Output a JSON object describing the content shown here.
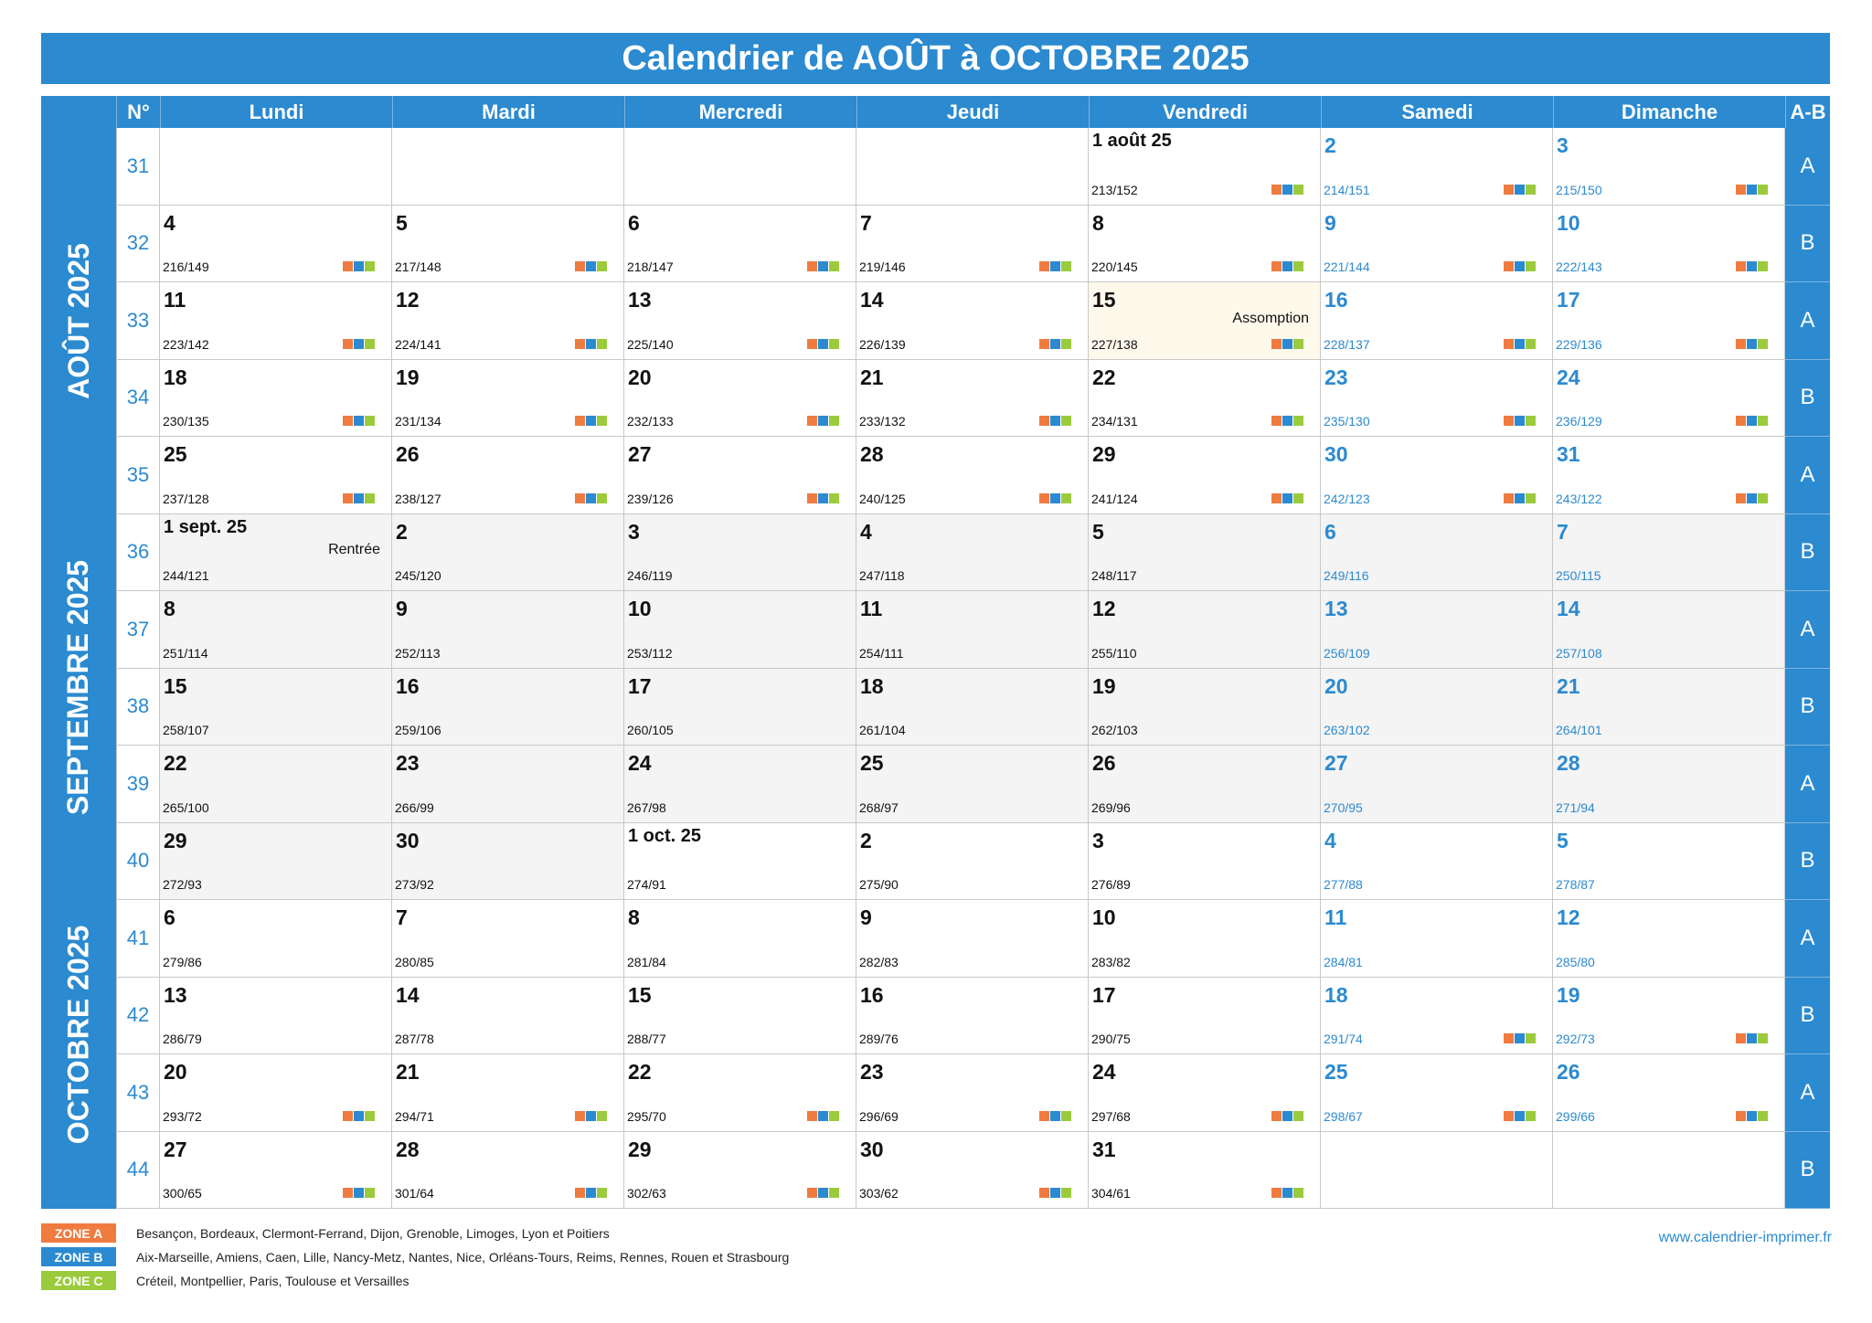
{
  "title": "Calendrier de AOÛT à OCTOBRE 2025",
  "headers": {
    "week": "N°",
    "days": [
      "Lundi",
      "Mardi",
      "Mercredi",
      "Jeudi",
      "Vendredi",
      "Samedi",
      "Dimanche"
    ],
    "ab": "A-B"
  },
  "months": [
    "AOÛT 2025",
    "SEPTEMBRE 2025",
    "OCTOBRE 2025"
  ],
  "weeks": [
    {
      "num": "31",
      "ab": "A",
      "days": [
        null,
        null,
        null,
        null,
        {
          "d": "1 août 25",
          "doy": "213/152",
          "z": 1,
          "m": 0
        },
        {
          "d": "2",
          "doy": "214/151",
          "z": 1,
          "m": 0
        },
        {
          "d": "3",
          "doy": "215/150",
          "z": 1,
          "m": 0
        }
      ]
    },
    {
      "num": "32",
      "ab": "B",
      "days": [
        {
          "d": "4",
          "doy": "216/149",
          "z": 1,
          "m": 0
        },
        {
          "d": "5",
          "doy": "217/148",
          "z": 1,
          "m": 0
        },
        {
          "d": "6",
          "doy": "218/147",
          "z": 1,
          "m": 0
        },
        {
          "d": "7",
          "doy": "219/146",
          "z": 1,
          "m": 0
        },
        {
          "d": "8",
          "doy": "220/145",
          "z": 1,
          "m": 0
        },
        {
          "d": "9",
          "doy": "221/144",
          "z": 1,
          "m": 0
        },
        {
          "d": "10",
          "doy": "222/143",
          "z": 1,
          "m": 0
        }
      ]
    },
    {
      "num": "33",
      "ab": "A",
      "days": [
        {
          "d": "11",
          "doy": "223/142",
          "z": 1,
          "m": 0
        },
        {
          "d": "12",
          "doy": "224/141",
          "z": 1,
          "m": 0
        },
        {
          "d": "13",
          "doy": "225/140",
          "z": 1,
          "m": 0
        },
        {
          "d": "14",
          "doy": "226/139",
          "z": 1,
          "m": 0
        },
        {
          "d": "15",
          "doy": "227/138",
          "z": 1,
          "m": 0,
          "note": "Assomption",
          "h": 1
        },
        {
          "d": "16",
          "doy": "228/137",
          "z": 1,
          "m": 0
        },
        {
          "d": "17",
          "doy": "229/136",
          "z": 1,
          "m": 0
        }
      ]
    },
    {
      "num": "34",
      "ab": "B",
      "days": [
        {
          "d": "18",
          "doy": "230/135",
          "z": 1,
          "m": 0
        },
        {
          "d": "19",
          "doy": "231/134",
          "z": 1,
          "m": 0
        },
        {
          "d": "20",
          "doy": "232/133",
          "z": 1,
          "m": 0
        },
        {
          "d": "21",
          "doy": "233/132",
          "z": 1,
          "m": 0
        },
        {
          "d": "22",
          "doy": "234/131",
          "z": 1,
          "m": 0
        },
        {
          "d": "23",
          "doy": "235/130",
          "z": 1,
          "m": 0
        },
        {
          "d": "24",
          "doy": "236/129",
          "z": 1,
          "m": 0
        }
      ]
    },
    {
      "num": "35",
      "ab": "A",
      "days": [
        {
          "d": "25",
          "doy": "237/128",
          "z": 1,
          "m": 0
        },
        {
          "d": "26",
          "doy": "238/127",
          "z": 1,
          "m": 0
        },
        {
          "d": "27",
          "doy": "239/126",
          "z": 1,
          "m": 0
        },
        {
          "d": "28",
          "doy": "240/125",
          "z": 1,
          "m": 0
        },
        {
          "d": "29",
          "doy": "241/124",
          "z": 1,
          "m": 0
        },
        {
          "d": "30",
          "doy": "242/123",
          "z": 1,
          "m": 0
        },
        {
          "d": "31",
          "doy": "243/122",
          "z": 1,
          "m": 0
        }
      ]
    },
    {
      "num": "36",
      "ab": "B",
      "days": [
        {
          "d": "1 sept. 25",
          "doy": "244/121",
          "m": 1,
          "note": "Rentrée"
        },
        {
          "d": "2",
          "doy": "245/120",
          "m": 1
        },
        {
          "d": "3",
          "doy": "246/119",
          "m": 1
        },
        {
          "d": "4",
          "doy": "247/118",
          "m": 1
        },
        {
          "d": "5",
          "doy": "248/117",
          "m": 1
        },
        {
          "d": "6",
          "doy": "249/116",
          "m": 1
        },
        {
          "d": "7",
          "doy": "250/115",
          "m": 1
        }
      ]
    },
    {
      "num": "37",
      "ab": "A",
      "days": [
        {
          "d": "8",
          "doy": "251/114",
          "m": 1
        },
        {
          "d": "9",
          "doy": "252/113",
          "m": 1
        },
        {
          "d": "10",
          "doy": "253/112",
          "m": 1
        },
        {
          "d": "11",
          "doy": "254/111",
          "m": 1
        },
        {
          "d": "12",
          "doy": "255/110",
          "m": 1
        },
        {
          "d": "13",
          "doy": "256/109",
          "m": 1
        },
        {
          "d": "14",
          "doy": "257/108",
          "m": 1
        }
      ]
    },
    {
      "num": "38",
      "ab": "B",
      "days": [
        {
          "d": "15",
          "doy": "258/107",
          "m": 1
        },
        {
          "d": "16",
          "doy": "259/106",
          "m": 1
        },
        {
          "d": "17",
          "doy": "260/105",
          "m": 1
        },
        {
          "d": "18",
          "doy": "261/104",
          "m": 1
        },
        {
          "d": "19",
          "doy": "262/103",
          "m": 1
        },
        {
          "d": "20",
          "doy": "263/102",
          "m": 1
        },
        {
          "d": "21",
          "doy": "264/101",
          "m": 1
        }
      ]
    },
    {
      "num": "39",
      "ab": "A",
      "days": [
        {
          "d": "22",
          "doy": "265/100",
          "m": 1
        },
        {
          "d": "23",
          "doy": "266/99",
          "m": 1
        },
        {
          "d": "24",
          "doy": "267/98",
          "m": 1
        },
        {
          "d": "25",
          "doy": "268/97",
          "m": 1
        },
        {
          "d": "26",
          "doy": "269/96",
          "m": 1
        },
        {
          "d": "27",
          "doy": "270/95",
          "m": 1
        },
        {
          "d": "28",
          "doy": "271/94",
          "m": 1
        }
      ]
    },
    {
      "num": "40",
      "ab": "B",
      "days": [
        {
          "d": "29",
          "doy": "272/93",
          "m": 1
        },
        {
          "d": "30",
          "doy": "273/92",
          "m": 1
        },
        {
          "d": "1 oct. 25",
          "doy": "274/91",
          "m": 2
        },
        {
          "d": "2",
          "doy": "275/90",
          "m": 2
        },
        {
          "d": "3",
          "doy": "276/89",
          "m": 2
        },
        {
          "d": "4",
          "doy": "277/88",
          "m": 2
        },
        {
          "d": "5",
          "doy": "278/87",
          "m": 2
        }
      ]
    },
    {
      "num": "41",
      "ab": "A",
      "days": [
        {
          "d": "6",
          "doy": "279/86",
          "m": 2
        },
        {
          "d": "7",
          "doy": "280/85",
          "m": 2
        },
        {
          "d": "8",
          "doy": "281/84",
          "m": 2
        },
        {
          "d": "9",
          "doy": "282/83",
          "m": 2
        },
        {
          "d": "10",
          "doy": "283/82",
          "m": 2
        },
        {
          "d": "11",
          "doy": "284/81",
          "m": 2
        },
        {
          "d": "12",
          "doy": "285/80",
          "m": 2
        }
      ]
    },
    {
      "num": "42",
      "ab": "B",
      "days": [
        {
          "d": "13",
          "doy": "286/79",
          "m": 2
        },
        {
          "d": "14",
          "doy": "287/78",
          "m": 2
        },
        {
          "d": "15",
          "doy": "288/77",
          "m": 2
        },
        {
          "d": "16",
          "doy": "289/76",
          "m": 2
        },
        {
          "d": "17",
          "doy": "290/75",
          "m": 2
        },
        {
          "d": "18",
          "doy": "291/74",
          "z": 1,
          "m": 2
        },
        {
          "d": "19",
          "doy": "292/73",
          "z": 1,
          "m": 2
        }
      ]
    },
    {
      "num": "43",
      "ab": "A",
      "days": [
        {
          "d": "20",
          "doy": "293/72",
          "z": 1,
          "m": 2
        },
        {
          "d": "21",
          "doy": "294/71",
          "z": 1,
          "m": 2
        },
        {
          "d": "22",
          "doy": "295/70",
          "z": 1,
          "m": 2
        },
        {
          "d": "23",
          "doy": "296/69",
          "z": 1,
          "m": 2
        },
        {
          "d": "24",
          "doy": "297/68",
          "z": 1,
          "m": 2
        },
        {
          "d": "25",
          "doy": "298/67",
          "z": 1,
          "m": 2
        },
        {
          "d": "26",
          "doy": "299/66",
          "z": 1,
          "m": 2
        }
      ]
    },
    {
      "num": "44",
      "ab": "B",
      "days": [
        {
          "d": "27",
          "doy": "300/65",
          "z": 1,
          "m": 2
        },
        {
          "d": "28",
          "doy": "301/64",
          "z": 1,
          "m": 2
        },
        {
          "d": "29",
          "doy": "302/63",
          "z": 1,
          "m": 2
        },
        {
          "d": "30",
          "doy": "303/62",
          "z": 1,
          "m": 2
        },
        {
          "d": "31",
          "doy": "304/61",
          "z": 1,
          "m": 2
        },
        null,
        null
      ]
    }
  ],
  "legend": [
    {
      "tag": "ZONE A",
      "color": "#f07b3f",
      "text": "Besançon, Bordeaux, Clermont-Ferrand, Dijon, Grenoble, Limoges, Lyon et Poitiers"
    },
    {
      "tag": "ZONE B",
      "color": "#2b8ad0",
      "text": "Aix-Marseille, Amiens, Caen, Lille, Nancy-Metz, Nantes, Nice, Orléans-Tours, Reims, Rennes, Rouen et Strasbourg"
    },
    {
      "tag": "ZONE C",
      "color": "#9bcb3c",
      "text": "Créteil, Montpellier, Paris, Toulouse et Versailles"
    }
  ],
  "website": "www.calendrier-imprimer.fr",
  "colors": {
    "accent": "#2b8ad0",
    "zoneA": "#f07b3f",
    "zoneB": "#2b8ad0",
    "zoneC": "#9bcb3c",
    "sept_bg": "#f4f4f4",
    "holiday_bg": "#fff9ec"
  }
}
